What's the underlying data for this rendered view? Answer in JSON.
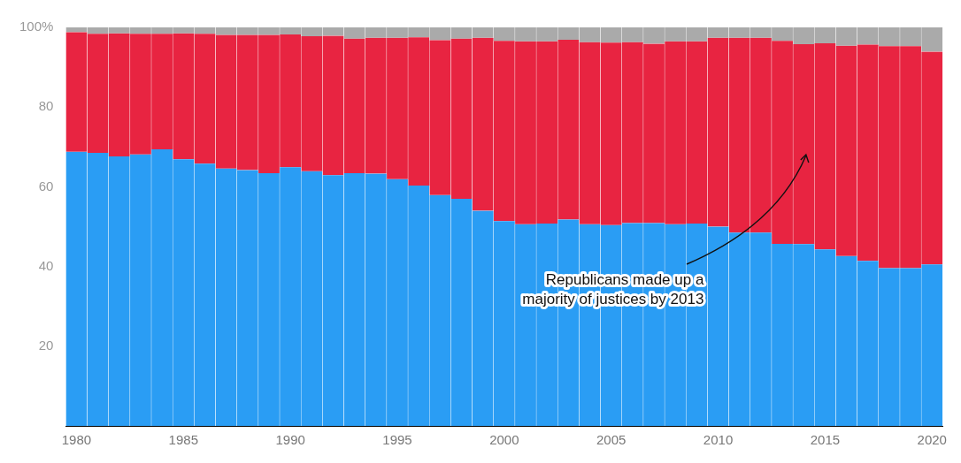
{
  "chart_data": {
    "type": "bar",
    "stacked": true,
    "categories": [
      "1980",
      null,
      null,
      null,
      null,
      "1985",
      null,
      null,
      null,
      null,
      "1990",
      null,
      null,
      null,
      null,
      "1995",
      null,
      null,
      null,
      null,
      "2000",
      null,
      null,
      null,
      null,
      "2005",
      null,
      null,
      null,
      null,
      "2010",
      null,
      null,
      null,
      null,
      "2015",
      null,
      null,
      null,
      null,
      "2020"
    ],
    "series": [
      {
        "color": "#2a9df4",
        "values": [
          68.8,
          68.5,
          67.6,
          68.1,
          69.4,
          66.9,
          65.8,
          64.6,
          64.2,
          63.4,
          64.9,
          63.9,
          62.9,
          63.4,
          63.3,
          61.9,
          60.3,
          57.9,
          57.0,
          54.0,
          51.4,
          50.6,
          50.8,
          51.8,
          50.6,
          50.4,
          50.9,
          50.9,
          50.6,
          50.8,
          50.0,
          48.5,
          48.5,
          45.7,
          45.6,
          44.3,
          42.6,
          41.4,
          39.6,
          39.6,
          40.5
        ]
      },
      {
        "color": "#e82441",
        "values": [
          30.0,
          29.9,
          30.9,
          30.3,
          29.0,
          31.6,
          32.6,
          33.5,
          33.9,
          34.7,
          33.3,
          33.9,
          35.0,
          33.8,
          34.1,
          35.5,
          37.2,
          38.9,
          40.2,
          43.4,
          45.2,
          45.9,
          45.7,
          45.1,
          45.7,
          45.8,
          45.4,
          45.0,
          45.9,
          45.7,
          47.4,
          48.9,
          48.9,
          50.9,
          50.2,
          51.7,
          52.8,
          54.3,
          55.7,
          55.7,
          53.4
        ]
      },
      {
        "color": "#aaaaaa",
        "values": [
          1.2,
          1.6,
          1.5,
          1.6,
          1.6,
          1.5,
          1.6,
          1.9,
          1.9,
          1.9,
          1.8,
          2.2,
          2.1,
          2.8,
          2.6,
          2.6,
          2.5,
          3.2,
          2.8,
          2.6,
          3.4,
          3.5,
          3.5,
          3.1,
          3.7,
          3.8,
          3.7,
          4.1,
          3.5,
          3.5,
          2.6,
          2.6,
          2.6,
          3.4,
          4.2,
          4.0,
          4.6,
          4.3,
          4.7,
          4.7,
          6.1
        ]
      }
    ],
    "ylim": [
      0,
      100
    ],
    "yticks": [
      20,
      40,
      60,
      80,
      {
        "value": 100,
        "label": "100%"
      }
    ],
    "annotations": [
      "Republicans made up a\nmajority of justices by 2013"
    ]
  }
}
